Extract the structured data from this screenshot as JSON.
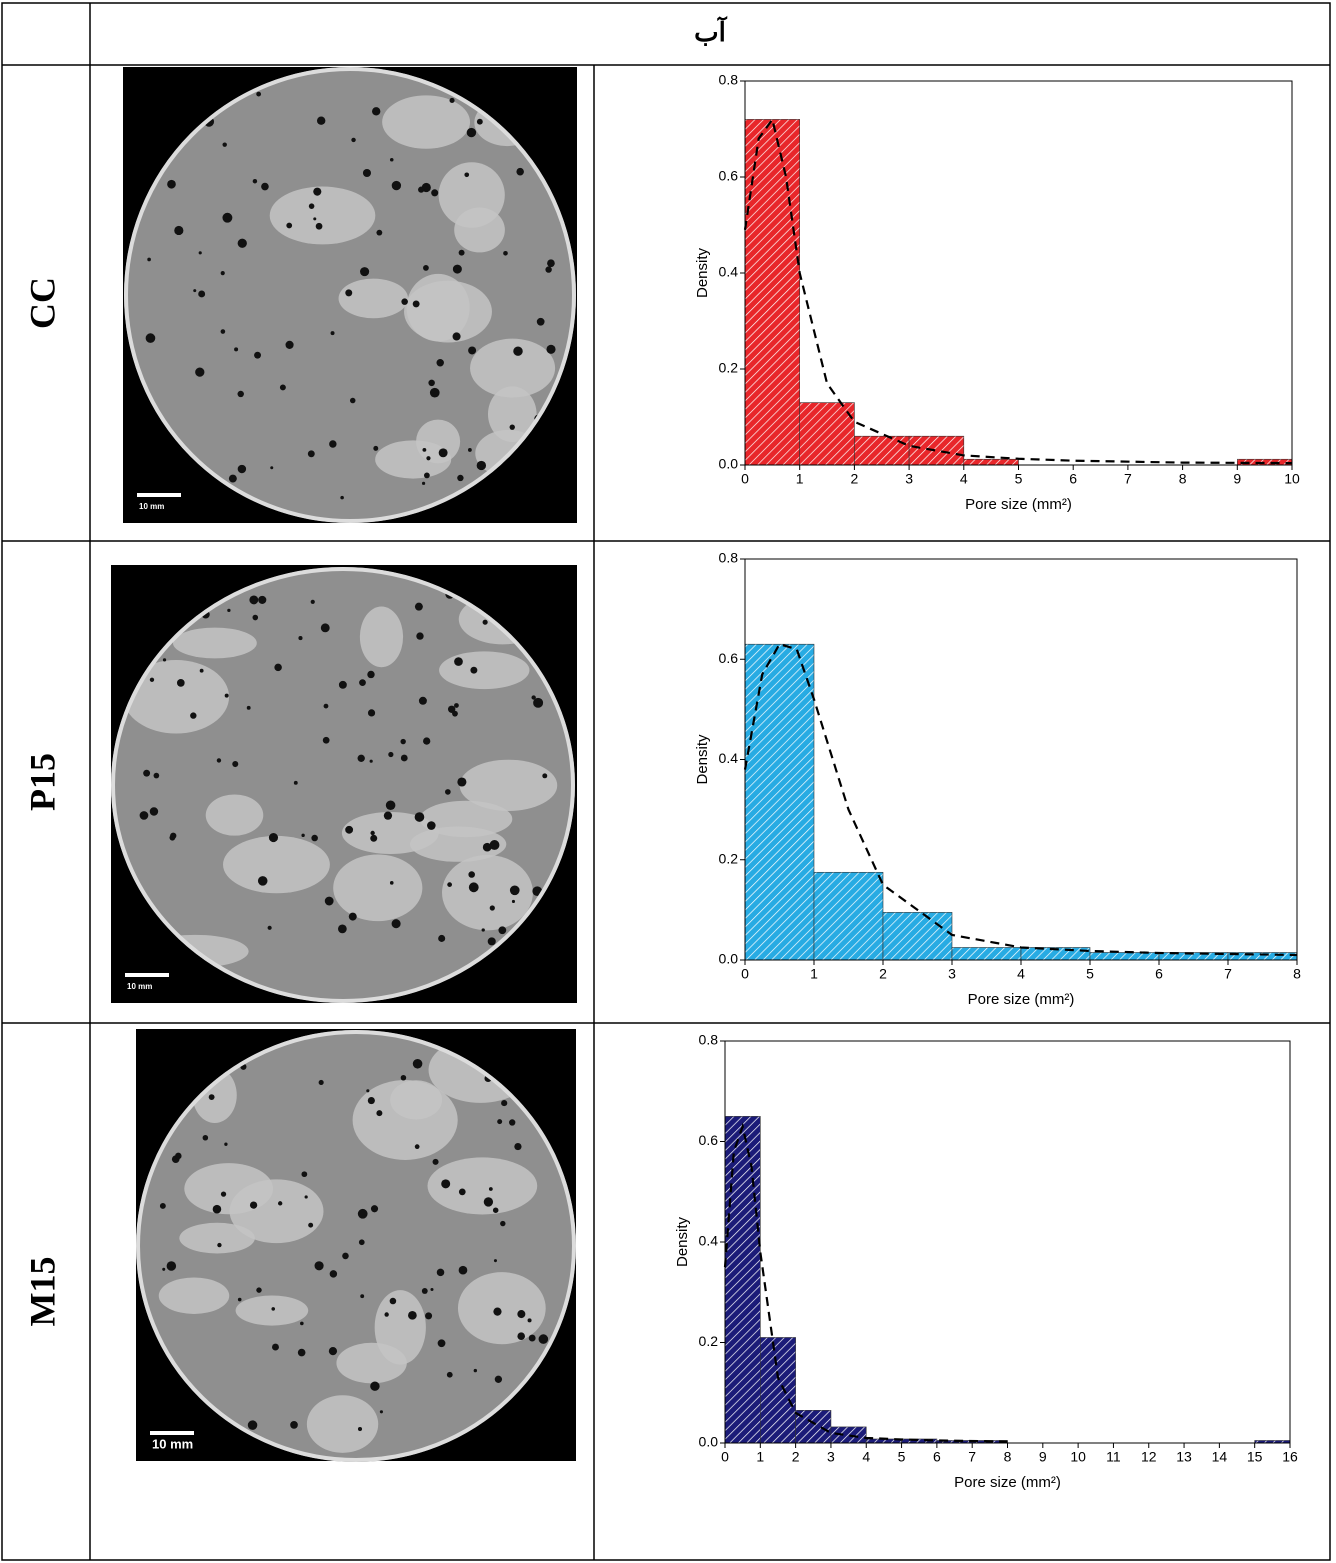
{
  "table": {
    "header": "آب",
    "rows": [
      {
        "label": "CC",
        "scale_bar": "10 mm",
        "chart_data": {
          "type": "histogram",
          "x_label": "Pore size (mm²)",
          "y_label": "Density",
          "color": "#e8262a",
          "bins": [
            0,
            1,
            2,
            3,
            4,
            5,
            6,
            7,
            8,
            9,
            10
          ],
          "values": [
            0.72,
            0.13,
            0.06,
            0.06,
            0.012,
            0,
            0,
            0,
            0,
            0.012
          ],
          "fit": {
            "x": [
              0,
              0.25,
              0.5,
              0.75,
              1,
              1.5,
              2,
              3,
              4,
              5,
              6,
              8,
              10
            ],
            "values": [
              0.49,
              0.68,
              0.72,
              0.6,
              0.4,
              0.17,
              0.09,
              0.04,
              0.02,
              0.013,
              0.009,
              0.005,
              0.004
            ]
          },
          "xlim": [
            0,
            10
          ],
          "ylim": [
            0,
            0.8
          ],
          "xticks": [
            0,
            1,
            2,
            3,
            4,
            5,
            6,
            7,
            8,
            9,
            10
          ],
          "yticks": [
            {
              "value": 0,
              "label": "0.0"
            },
            0.2,
            0.4,
            0.6,
            0.8
          ]
        }
      },
      {
        "label": "P15",
        "scale_bar": "10 mm",
        "chart_data": {
          "type": "histogram",
          "x_label": "Pore size (mm²)",
          "y_label": "Density",
          "color": "#27abe3",
          "bins": [
            0,
            1,
            2,
            3,
            4,
            5,
            6,
            7,
            8
          ],
          "values": [
            0.63,
            0.175,
            0.095,
            0.025,
            0.025,
            0.015,
            0.015,
            0.015
          ],
          "fit": {
            "x": [
              0,
              0.25,
              0.5,
              0.75,
              1,
              1.5,
              2,
              3,
              4,
              5,
              6,
              8
            ],
            "values": [
              0.38,
              0.57,
              0.63,
              0.62,
              0.52,
              0.3,
              0.15,
              0.05,
              0.025,
              0.018,
              0.014,
              0.01
            ]
          },
          "xlim": [
            0,
            8
          ],
          "ylim": [
            0,
            0.8
          ],
          "xticks": [
            0,
            1,
            2,
            3,
            4,
            5,
            6,
            7,
            8
          ],
          "yticks": [
            {
              "value": 0,
              "label": "0.0"
            },
            0.2,
            0.4,
            0.6,
            0.8
          ]
        }
      },
      {
        "label": "M15",
        "scale_bar": "10 mm",
        "chart_data": {
          "type": "histogram",
          "x_label": "Pore size (mm²)",
          "y_label": "Density",
          "color": "#1b1b78",
          "bins": [
            0,
            1,
            2,
            3,
            4,
            5,
            6,
            7,
            8,
            9,
            10,
            11,
            12,
            13,
            14,
            15,
            16
          ],
          "values": [
            0.65,
            0.21,
            0.065,
            0.032,
            0.008,
            0.008,
            0.005,
            0.005,
            0,
            0,
            0,
            0,
            0,
            0,
            0,
            0.005
          ],
          "fit": {
            "x": [
              0,
              0.25,
              0.5,
              0.75,
              1,
              1.5,
              2,
              3,
              4,
              5,
              6,
              8
            ],
            "values": [
              0.35,
              0.58,
              0.63,
              0.55,
              0.38,
              0.13,
              0.06,
              0.02,
              0.01,
              0.007,
              0.005,
              0.003
            ]
          },
          "xlim": [
            0,
            16
          ],
          "ylim": [
            0,
            0.8
          ],
          "xticks": [
            0,
            1,
            2,
            3,
            4,
            5,
            6,
            7,
            8,
            9,
            10,
            11,
            12,
            13,
            14,
            15,
            16
          ],
          "yticks": [
            {
              "value": 0,
              "label": "0.0"
            },
            0.2,
            0.4,
            0.6,
            0.8
          ]
        }
      }
    ]
  }
}
